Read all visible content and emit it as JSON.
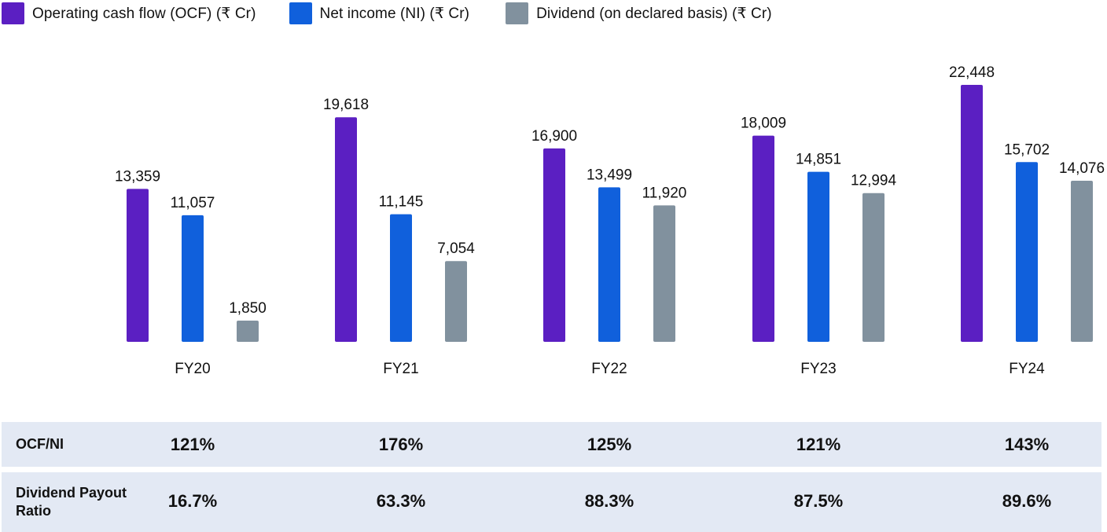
{
  "legend": [
    {
      "label": "Operating cash flow (OCF) (₹ Cr)",
      "color": "#5b1fc2"
    },
    {
      "label": "Net income (NI) (₹ Cr)",
      "color": "#1060dc"
    },
    {
      "label": "Dividend (on declared basis) (₹ Cr)",
      "color": "#81919e"
    }
  ],
  "chart_data": {
    "type": "bar",
    "categories": [
      "FY20",
      "FY21",
      "FY22",
      "FY23",
      "FY24"
    ],
    "series": [
      {
        "name": "Operating cash flow (OCF) (₹ Cr)",
        "color": "#5b1fc2",
        "values": [
          13359,
          19618,
          16900,
          18009,
          22448
        ],
        "labels": [
          "13,359",
          "19,618",
          "16,900",
          "18,009",
          "22,448"
        ]
      },
      {
        "name": "Net income (NI) (₹ Cr)",
        "color": "#1060dc",
        "values": [
          11057,
          11145,
          13499,
          14851,
          15702
        ],
        "labels": [
          "11,057",
          "11,145",
          "13,499",
          "14,851",
          "15,702"
        ]
      },
      {
        "name": "Dividend (on declared basis) (₹ Cr)",
        "color": "#81919e",
        "values": [
          1850,
          7054,
          11920,
          12994,
          14076
        ],
        "labels": [
          "1,850",
          "7,054",
          "11,920",
          "12,994",
          "14,076"
        ]
      }
    ],
    "ylim": [
      0,
      23000
    ],
    "grid": false,
    "legend_position": "top-left"
  },
  "table": {
    "rows": [
      {
        "label": "OCF/NI",
        "values": [
          "121%",
          "176%",
          "125%",
          "121%",
          "143%"
        ]
      },
      {
        "label": "Dividend Payout Ratio",
        "values": [
          "16.7%",
          "63.3%",
          "88.3%",
          "87.5%",
          "89.6%"
        ]
      }
    ]
  }
}
